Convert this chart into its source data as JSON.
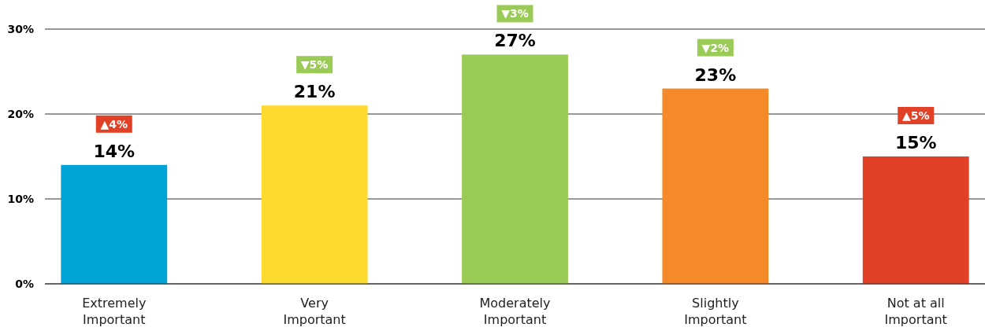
{
  "chart_data": {
    "type": "bar",
    "categories": [
      "Extremely Important",
      "Very Important",
      "Moderately Important",
      "Slightly Important",
      "Not at all Important"
    ],
    "values": [
      14,
      21,
      27,
      23,
      15
    ],
    "colors": [
      "#00a3d4",
      "#fdda2f",
      "#9bcb57",
      "#f58a2a",
      "#e14127"
    ],
    "value_labels": [
      "14%",
      "21%",
      "27%",
      "23%",
      "15%"
    ],
    "ylim": [
      0,
      30
    ],
    "yticks": [
      {
        "value": 0,
        "label": "0%"
      },
      {
        "value": 10,
        "label": "10%"
      },
      {
        "value": 20,
        "label": "20%"
      },
      {
        "value": 30,
        "label": "30%"
      }
    ],
    "grid": "y",
    "annotations": [
      "▲4%",
      "▼5%",
      "▼3%",
      "▼2%",
      "▲5%"
    ]
  }
}
